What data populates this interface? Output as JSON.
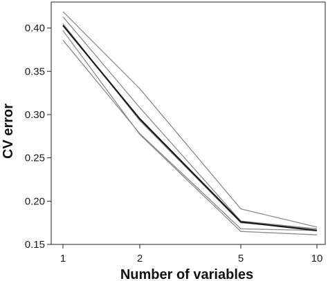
{
  "chart_data": {
    "type": "line",
    "title": "",
    "xlabel": "Number of variables",
    "ylabel": "CV error",
    "x": [
      1,
      2,
      5,
      10
    ],
    "x_tick_labels": [
      "1",
      "2",
      "5",
      "10"
    ],
    "y_ticks": [
      0.15,
      0.2,
      0.25,
      0.3,
      0.35,
      0.4
    ],
    "y_tick_labels": [
      "0.15",
      "0.20",
      "0.25",
      "0.30",
      "0.35",
      "0.40"
    ],
    "ylim": [
      0.15,
      0.43
    ],
    "grid": false,
    "legend": "none",
    "series": [
      {
        "values": [
          0.419,
          0.33,
          0.191,
          0.17
        ],
        "color": "#8a8a8a"
      },
      {
        "values": [
          0.413,
          0.308,
          0.177,
          0.168
        ],
        "color": "#8a8a8a"
      },
      {
        "values": [
          0.386,
          0.278,
          0.168,
          0.166
        ],
        "color": "#8a8a8a"
      },
      {
        "values": [
          0.397,
          0.277,
          0.165,
          0.161
        ],
        "color": "#8a8a8a"
      },
      {
        "values": [
          0.405,
          0.293,
          0.175,
          0.168
        ],
        "color": "#8a8a8a"
      },
      {
        "values": [
          0.403,
          0.295,
          0.176,
          0.166
        ],
        "color": "#1a1a1a"
      }
    ]
  }
}
